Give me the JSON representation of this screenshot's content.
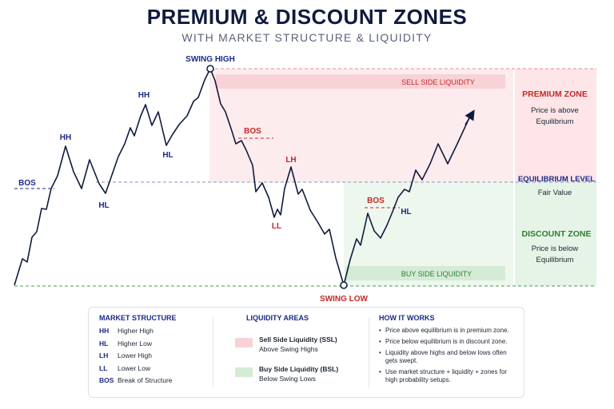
{
  "title": "PREMIUM & DISCOUNT ZONES",
  "subtitle": "WITH MARKET STRUCTURE & LIQUIDITY",
  "colors": {
    "navy": "#0f1b3d",
    "blue": "#1b2a86",
    "premium": "#c62828",
    "discount": "#2e7d32",
    "premium_fill": "#fde8ea",
    "discount_fill": "#e8f5e9",
    "equilibrium_line": "#8a94b8"
  },
  "chart": {
    "labels": {
      "swing_high": "SWING HIGH",
      "swing_low": "SWING LOW",
      "ssl": "SELL SIDE LIQUIDITY",
      "bsl": "BUY SIDE LIQUIDITY",
      "hh1": "HH",
      "hh2": "HH",
      "hl1": "HL",
      "hl2": "HL",
      "hl3": "HL",
      "bos1": "BOS",
      "bos2": "BOS",
      "bos3": "BOS",
      "lh": "LH",
      "ll": "LL"
    },
    "zones": {
      "premium_title": "PREMIUM ZONE",
      "premium_text_1": "Price is above",
      "premium_text_2": "Equilibrium",
      "equilibrium_title": "EQUILIBRIUM LEVEL",
      "equilibrium_text": "Fair Value",
      "discount_title": "DISCOUNT ZONE",
      "discount_text_1": "Price is below",
      "discount_text_2": "Equilibrium"
    }
  },
  "legend": {
    "market_structure": {
      "title": "MARKET STRUCTURE",
      "items": [
        {
          "abbr": "HH",
          "text": "Higher High"
        },
        {
          "abbr": "HL",
          "text": "Higher Low"
        },
        {
          "abbr": "LH",
          "text": "Lower High"
        },
        {
          "abbr": "LL",
          "text": "Lower Low"
        },
        {
          "abbr": "BOS",
          "text": "Break of Structure"
        }
      ]
    },
    "liquidity": {
      "title": "LIQUIDITY AREAS",
      "ssl_name": "Sell Side Liquidity (SSL)",
      "ssl_desc": "Above Swing Highs",
      "bsl_name": "Buy Side Liquidity (BSL)",
      "bsl_desc": "Below Swing Lows"
    },
    "how_it_works": {
      "title": "HOW IT WORKS",
      "items": [
        "Price above equilibrium is in premium zone.",
        "Price below equilibrium is in discount zone.",
        "Liquidity above highs and below lows often gets swept.",
        "Use market structure + liquidity + zones for high probability setups."
      ]
    }
  }
}
